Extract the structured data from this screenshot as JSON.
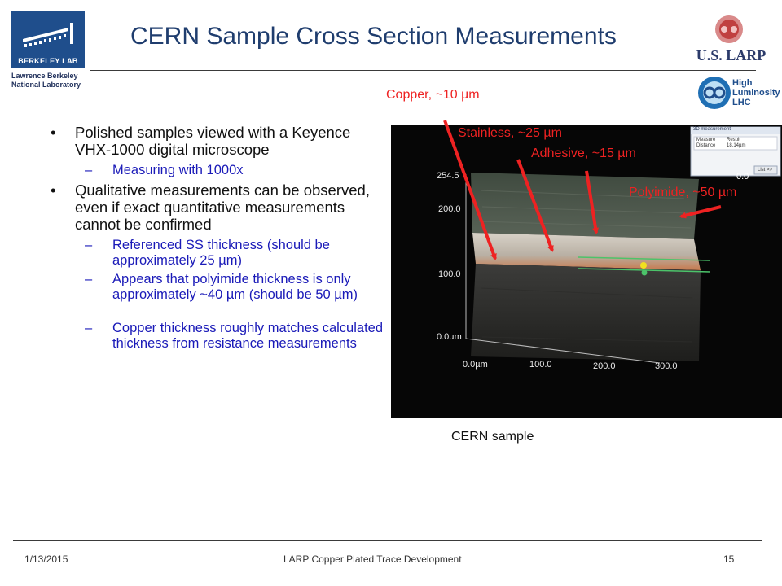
{
  "header": {
    "title": "CERN Sample Cross Section Measurements",
    "berkeley_logo_text": "BERKELEY LAB",
    "berkeley_sub_line1": "Lawrence Berkeley",
    "berkeley_sub_line2": "National Laboratory",
    "larp_logo_text": "U.S. LARP",
    "hl_logo_line1": "High",
    "hl_logo_line2": "Luminosity",
    "hl_logo_line3": "LHC"
  },
  "bullets": [
    {
      "level": 1,
      "text": "Polished samples viewed with a Keyence VHX-1000 digital microscope"
    },
    {
      "level": 2,
      "text": "Measuring with 1000x"
    },
    {
      "level": 1,
      "text": "Qualitative measurements can be observed, even if exact quantitative measurements cannot be confirmed"
    },
    {
      "level": 2,
      "text": "Referenced SS thickness (should be approximately 25 µm)"
    },
    {
      "level": 2,
      "text": "Appears that polyimide thickness is only approximately ~40 µm (should be 50 µm)"
    },
    {
      "level": 2,
      "text": "Copper thickness roughly matches calculated thickness from resistance measurements"
    }
  ],
  "annotations": {
    "copper": "Copper, ~10 µm",
    "stainless": "Stainless, ~25 µm",
    "adhesive": "Adhesive, ~15 µm",
    "polyimide": "Polyimide, ~50 µm"
  },
  "image": {
    "y_ticks": [
      "254.5",
      "200.0",
      "100.0",
      "0.0µm"
    ],
    "x_ticks": [
      "0.0µm",
      "100.0",
      "200.0",
      "300.0"
    ],
    "panel_title": "3D measurement",
    "panel_col1": "Measure",
    "panel_col2": "Result",
    "panel_row_label": "Distance",
    "panel_row_value": "18.14µm",
    "panel_button": "List >>",
    "panel_readout": "0.0"
  },
  "caption": "CERN sample",
  "footer": {
    "date": "1/13/2015",
    "center": "LARP Copper Plated Trace Development",
    "page": "15"
  },
  "colors": {
    "title": "#1f3d6e",
    "sub_bullet": "#1a1ab8",
    "annotation": "#ee2222"
  }
}
